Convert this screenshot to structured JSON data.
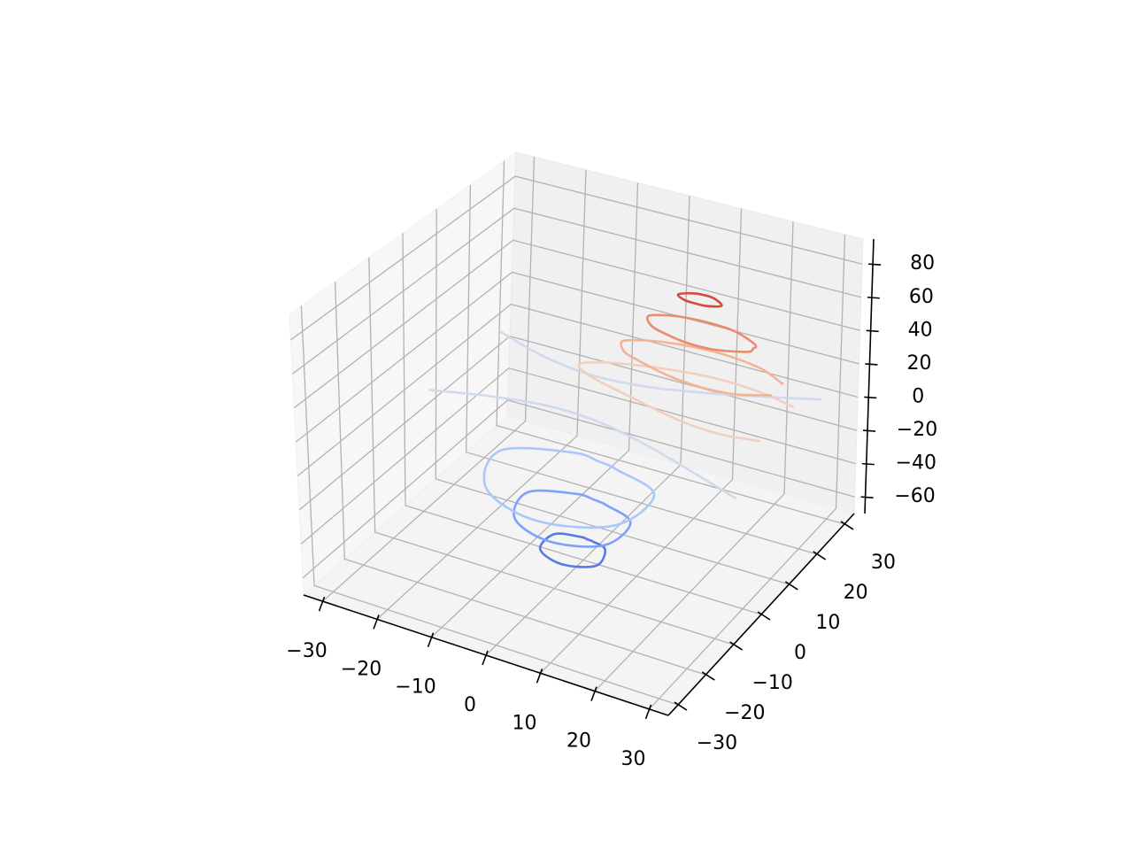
{
  "chart_data": {
    "type": "contour3d",
    "xlim": [
      -33.5,
      33.5
    ],
    "ylim": [
      -33.5,
      33.5
    ],
    "zlim": [
      -70,
      95
    ],
    "xticks": [
      {
        "value": -30,
        "label": "−30"
      },
      {
        "value": -20,
        "label": "−20"
      },
      {
        "value": -10,
        "label": "−10"
      },
      0,
      10,
      20,
      30
    ],
    "yticks": [
      {
        "value": -30,
        "label": "−30"
      },
      {
        "value": -20,
        "label": "−20"
      },
      {
        "value": -10,
        "label": "−10"
      },
      0,
      10,
      20,
      30
    ],
    "zticks": [
      {
        "value": -60,
        "label": "−60"
      },
      {
        "value": -40,
        "label": "−40"
      },
      {
        "value": -20,
        "label": "−20"
      },
      0,
      20,
      40,
      60,
      80
    ],
    "grid": true,
    "series": [
      {
        "z": -60,
        "color": "#5a78e4",
        "closed": true,
        "x": [
          4.05,
          1.15,
          0,
          -1.4,
          -5.5,
          -5.25,
          0,
          5.1
        ],
        "y": [
          0,
          1.15,
          1.3,
          1.4,
          0,
          -5.25,
          -7.5,
          -5.1
        ]
      },
      {
        "z": -40,
        "color": "#7fa1fb",
        "closed": true,
        "x": [
          8.7,
          2.8,
          0,
          -3.5,
          -10.55,
          -8.3,
          0,
          8.25
        ],
        "y": [
          0,
          2.8,
          3.35,
          3.5,
          0,
          -8.3,
          -11.7,
          -8.25
        ]
      },
      {
        "z": -20,
        "color": "#aac7fd",
        "closed": true,
        "x": [
          13,
          4,
          0,
          -5.3,
          -15.7,
          -11.7,
          0,
          11.7
        ],
        "y": [
          0,
          4,
          4.9,
          5.3,
          0,
          -11.7,
          -16.6,
          -11.7
        ]
      },
      {
        "z": 0,
        "color": "#cfdaea",
        "closed": false,
        "x": [
          -30,
          -20,
          -10,
          0,
          10,
          20,
          28.1
        ],
        "y": [
          24.6,
          21,
          19.3,
          20.2,
          23.1,
          26.8,
          30
        ]
      },
      {
        "z": 0,
        "color": "#cfdaea",
        "closed": false,
        "x": [
          -30,
          -20,
          -10,
          0,
          10,
          20,
          30
        ],
        "y": [
          2.1,
          5.3,
          7.1,
          6.3,
          3.5,
          -0.2,
          -4.1
        ]
      },
      {
        "z": 20,
        "color": "#efd0c0",
        "closed": false,
        "x": [
          30,
          25,
          20,
          15,
          10,
          5,
          0,
          -5,
          -7.8,
          -5,
          0,
          5,
          10,
          15,
          20,
          25,
          30
        ],
        "y": [
          3.9,
          2.9,
          2.85,
          3.6,
          4.9,
          6.4,
          7.8,
          9.6,
          11.8,
          14.1,
          15.9,
          17.15,
          18,
          18.4,
          18.2,
          17.5,
          16.2
        ]
      },
      {
        "z": 40,
        "color": "#f5b396",
        "closed": false,
        "x": [
          30,
          25,
          20,
          15,
          10,
          5,
          2,
          0,
          2,
          5,
          10,
          15,
          20,
          25,
          30
        ],
        "y": [
          7.9,
          5.5,
          4.8,
          5.1,
          6.2,
          7.9,
          9.2,
          12,
          13.6,
          14.8,
          15.85,
          16.15,
          15.8,
          14.7,
          12.1
        ]
      },
      {
        "z": 60,
        "color": "#ec8a6d",
        "closed": true,
        "x": [
          5,
          7,
          10,
          15,
          20,
          25,
          25.4,
          25,
          20,
          15,
          10,
          7
        ],
        "y": [
          11.5,
          9.0,
          7.75,
          6.6,
          6.74,
          8.6,
          10,
          11.4,
          13.74,
          14.3,
          13.9,
          13
        ]
      },
      {
        "z": 80,
        "color": "#d24b40",
        "closed": true,
        "x": [
          11.2,
          13,
          15,
          17,
          19.3,
          17,
          15,
          13
        ],
        "y": [
          10.2,
          9.0,
          8.8,
          8.85,
          10.1,
          11.75,
          12,
          11.6
        ]
      }
    ]
  }
}
